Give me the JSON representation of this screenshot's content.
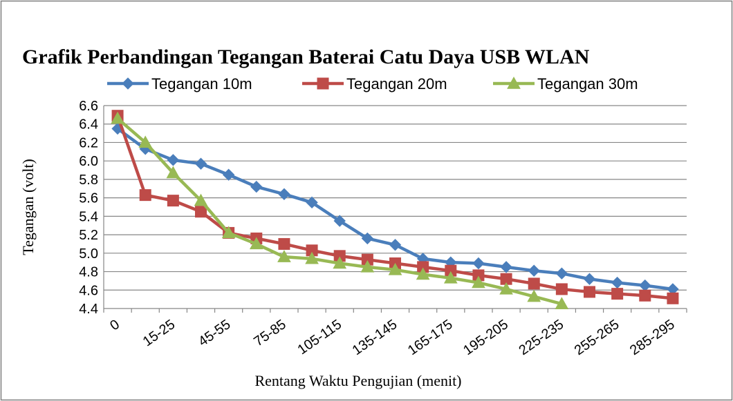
{
  "chart_data": {
    "type": "line",
    "title": "Grafik Perbandingan Tegangan Baterai Catu Daya USB WLAN",
    "xlabel": "Rentang Waktu Pengujian (menit)",
    "ylabel": "Tegangan (volt)",
    "ylim": [
      4.4,
      6.6
    ],
    "yticks": [
      "4.4",
      "4.6",
      "4.8",
      "5.0",
      "5.2",
      "5.4",
      "5.6",
      "5.8",
      "6.0",
      "6.2",
      "6.4",
      "6.6"
    ],
    "categories": [
      "0",
      "",
      "15-25",
      "",
      "45-55",
      "",
      "75-85",
      "",
      "105-115",
      "",
      "135-145",
      "",
      "165-175",
      "",
      "195-205",
      "",
      "225-235",
      "",
      "255-265",
      "",
      "285-295"
    ],
    "grid": "horizontal",
    "legend_position": "top",
    "series": [
      {
        "name": "Tegangan 10m",
        "color": "#4a7ebb",
        "marker": "diamond",
        "values": [
          6.35,
          6.13,
          6.01,
          5.97,
          5.85,
          5.72,
          5.64,
          5.55,
          5.35,
          5.16,
          5.09,
          4.94,
          4.9,
          4.89,
          4.85,
          4.81,
          4.78,
          4.72,
          4.68,
          4.65,
          4.61
        ]
      },
      {
        "name": "Tegangan 20m",
        "color": "#be4b48",
        "marker": "square",
        "values": [
          6.49,
          5.63,
          5.57,
          5.45,
          5.22,
          5.16,
          5.1,
          5.03,
          4.97,
          4.93,
          4.89,
          4.85,
          4.81,
          4.76,
          4.72,
          4.67,
          4.61,
          4.58,
          4.56,
          4.54,
          4.51
        ]
      },
      {
        "name": "Tegangan 30m",
        "color": "#98b954",
        "marker": "triangle",
        "values": [
          6.46,
          6.2,
          5.87,
          5.57,
          5.22,
          5.1,
          4.96,
          4.94,
          4.89,
          4.85,
          4.82,
          4.77,
          4.73,
          4.68,
          4.61,
          4.53,
          4.45,
          null,
          null,
          null,
          null
        ]
      }
    ]
  }
}
